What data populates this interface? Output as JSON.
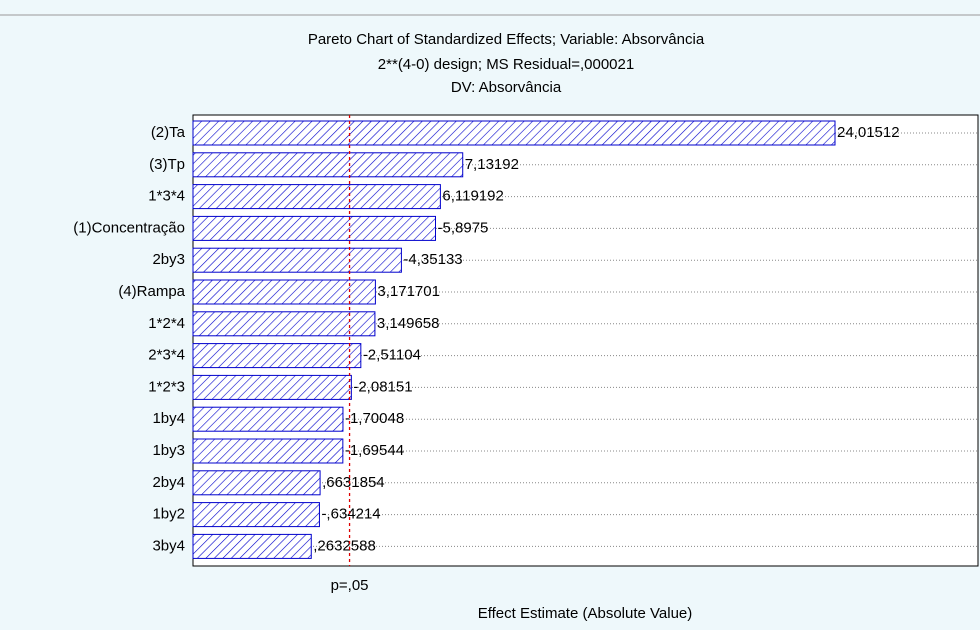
{
  "chart_data": {
    "type": "bar",
    "orientation": "horizontal",
    "title": "Pareto Chart of Standardized Effects; Variable: Absorvância",
    "subtitle": [
      "2**(4-0) design; MS Residual=,000021",
      "DV: Absorvância"
    ],
    "xlabel": "Effect Estimate (Absolute Value)",
    "categories": [
      "(2)Ta",
      "(3)Tp",
      "1*3*4",
      "(1)Concentração",
      "2by3",
      "(4)Rampa",
      "1*2*4",
      "2*3*4",
      "1*2*3",
      "1by4",
      "1by3",
      "2by4",
      "1by2",
      "3by4"
    ],
    "values": [
      24.01512,
      7.13192,
      6.119192,
      -5.8975,
      -4.35133,
      3.171701,
      3.149658,
      -2.51104,
      -2.08151,
      -1.70048,
      -1.69544,
      0.6631854,
      -0.634214,
      0.2632588
    ],
    "value_labels": [
      "24,01512",
      "7,13192",
      "6,119192",
      "-5,8975",
      "-4,35133",
      "3,171701",
      "3,149658",
      "-2,51104",
      "-2,08151",
      "-1,70048",
      "-1,69544",
      ",6631854",
      "-,634214",
      ",2632588"
    ],
    "color": "#0000cc",
    "xlim": [
      -5.1,
      30.5
    ],
    "reference_line": {
      "value": 2.0,
      "label": "p=,05",
      "color": "#dd0000"
    },
    "grid": true
  }
}
